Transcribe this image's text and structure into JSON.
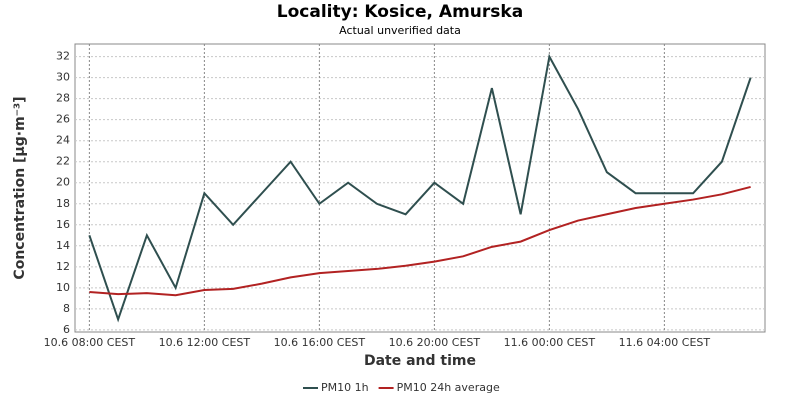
{
  "chart_data": {
    "type": "line",
    "title": "Locality: Kosice, Amurska",
    "subtitle": "Actual unverified data",
    "x_label": "Date and time",
    "y_label": "Concentration [µg·m⁻³]",
    "categories": [
      "10.6 08:00 CEST",
      null,
      null,
      null,
      "10.6 12:00 CEST",
      null,
      null,
      null,
      "10.6 16:00 CEST",
      null,
      null,
      null,
      "10.6 20:00 CEST",
      null,
      null,
      null,
      "11.6 00:00 CEST",
      null,
      null,
      null,
      "11.6 04:00 CEST",
      null,
      null,
      null
    ],
    "series": [
      {
        "name": "PM10 1h",
        "color": "#2f4f4f",
        "values": [
          15,
          7,
          15,
          10,
          19,
          16,
          19,
          22,
          18,
          20,
          18,
          17,
          20,
          18,
          29,
          17,
          32,
          27,
          21,
          19,
          19,
          19,
          22,
          30
        ]
      },
      {
        "name": "PM10 24h average",
        "color": "#b22222",
        "values": [
          9.6,
          9.4,
          9.5,
          9.3,
          9.8,
          9.9,
          10.4,
          11.0,
          11.4,
          11.6,
          11.8,
          12.1,
          12.5,
          13.0,
          13.9,
          14.4,
          15.5,
          16.4,
          17.0,
          17.6,
          18.0,
          18.4,
          18.9,
          19.6
        ]
      }
    ],
    "ylim": [
      5.8,
      33.2
    ],
    "yticks": [
      6,
      8,
      10,
      12,
      14,
      16,
      18,
      20,
      22,
      24,
      26,
      28,
      30,
      32
    ],
    "grid": true,
    "legend": "bottom"
  }
}
